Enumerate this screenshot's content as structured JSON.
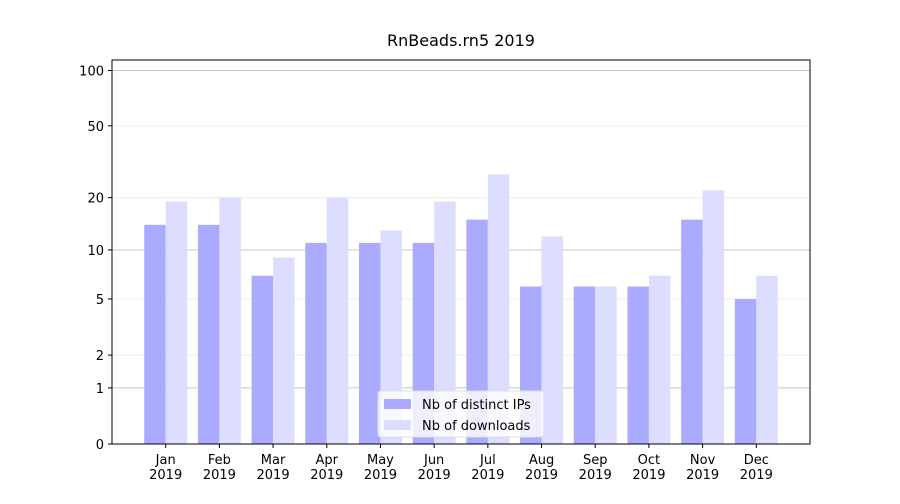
{
  "chart_data": {
    "type": "bar",
    "title": "RnBeads.rn5 2019",
    "categories": [
      "Jan\n2019",
      "Feb\n2019",
      "Mar\n2019",
      "Apr\n2019",
      "May\n2019",
      "Jun\n2019",
      "Jul\n2019",
      "Aug\n2019",
      "Sep\n2019",
      "Oct\n2019",
      "Nov\n2019",
      "Dec\n2019"
    ],
    "series": [
      {
        "name": "Nb of distinct IPs",
        "color": "#aaaaff",
        "values": [
          14,
          14,
          7,
          11,
          11,
          11,
          15,
          6,
          6,
          6,
          15,
          5
        ]
      },
      {
        "name": "Nb of downloads",
        "color": "#ddddff",
        "values": [
          19,
          20,
          9,
          20,
          13,
          19,
          27,
          12,
          6,
          7,
          22,
          7
        ]
      }
    ],
    "yscale": "log1p",
    "ylim": [
      0,
      114
    ],
    "yticks": [
      0,
      1,
      2,
      5,
      10,
      20,
      50,
      100
    ],
    "grid": true,
    "legend": "lower center"
  }
}
